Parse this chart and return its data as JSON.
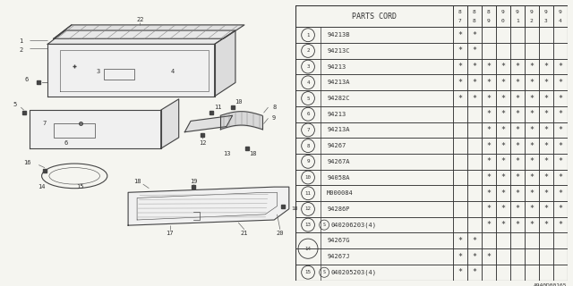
{
  "watermark": "A940D00165",
  "bg_color": "#f5f5f0",
  "col_header": "PARTS CORD",
  "year_cols": [
    "87",
    "88",
    "89",
    "90",
    "91",
    "92",
    "93",
    "94"
  ],
  "rows": [
    {
      "num": 1,
      "circled": true,
      "s_prefix": false,
      "part": "94213B",
      "marks": [
        1,
        1,
        0,
        0,
        0,
        0,
        0,
        0
      ]
    },
    {
      "num": 2,
      "circled": true,
      "s_prefix": false,
      "part": "94213C",
      "marks": [
        1,
        1,
        0,
        0,
        0,
        0,
        0,
        0
      ]
    },
    {
      "num": 3,
      "circled": true,
      "s_prefix": false,
      "part": "94213",
      "marks": [
        1,
        1,
        1,
        1,
        1,
        1,
        1,
        1
      ]
    },
    {
      "num": 4,
      "circled": true,
      "s_prefix": false,
      "part": "94213A",
      "marks": [
        1,
        1,
        1,
        1,
        1,
        1,
        1,
        1
      ]
    },
    {
      "num": 5,
      "circled": true,
      "s_prefix": false,
      "part": "94282C",
      "marks": [
        1,
        1,
        1,
        1,
        1,
        1,
        1,
        1
      ]
    },
    {
      "num": 6,
      "circled": true,
      "s_prefix": false,
      "part": "94213",
      "marks": [
        0,
        0,
        1,
        1,
        1,
        1,
        1,
        1
      ]
    },
    {
      "num": 7,
      "circled": true,
      "s_prefix": false,
      "part": "94213A",
      "marks": [
        0,
        0,
        1,
        1,
        1,
        1,
        1,
        1
      ]
    },
    {
      "num": 8,
      "circled": true,
      "s_prefix": false,
      "part": "94267",
      "marks": [
        0,
        0,
        1,
        1,
        1,
        1,
        1,
        1
      ]
    },
    {
      "num": 9,
      "circled": true,
      "s_prefix": false,
      "part": "94267A",
      "marks": [
        0,
        0,
        1,
        1,
        1,
        1,
        1,
        1
      ]
    },
    {
      "num": 10,
      "circled": true,
      "s_prefix": false,
      "part": "94058A",
      "marks": [
        0,
        0,
        1,
        1,
        1,
        1,
        1,
        1
      ]
    },
    {
      "num": 11,
      "circled": true,
      "s_prefix": false,
      "part": "M000084",
      "marks": [
        0,
        0,
        1,
        1,
        1,
        1,
        1,
        1
      ]
    },
    {
      "num": 12,
      "circled": true,
      "s_prefix": false,
      "part": "94286P",
      "marks": [
        0,
        0,
        1,
        1,
        1,
        1,
        1,
        1
      ]
    },
    {
      "num": 13,
      "circled": true,
      "s_prefix": true,
      "part": "040206203(4)",
      "marks": [
        0,
        0,
        1,
        1,
        1,
        1,
        1,
        1
      ]
    },
    {
      "num": 14,
      "circled": true,
      "s_prefix": false,
      "part": "94267G",
      "marks": [
        1,
        1,
        0,
        0,
        0,
        0,
        0,
        0
      ],
      "sub_a": true
    },
    {
      "num": 14,
      "circled": false,
      "s_prefix": false,
      "part": "94267J",
      "marks": [
        1,
        1,
        1,
        0,
        0,
        0,
        0,
        0
      ],
      "sub_b": true
    },
    {
      "num": 15,
      "circled": true,
      "s_prefix": true,
      "part": "040205203(4)",
      "marks": [
        1,
        1,
        0,
        0,
        0,
        0,
        0,
        0
      ]
    }
  ]
}
